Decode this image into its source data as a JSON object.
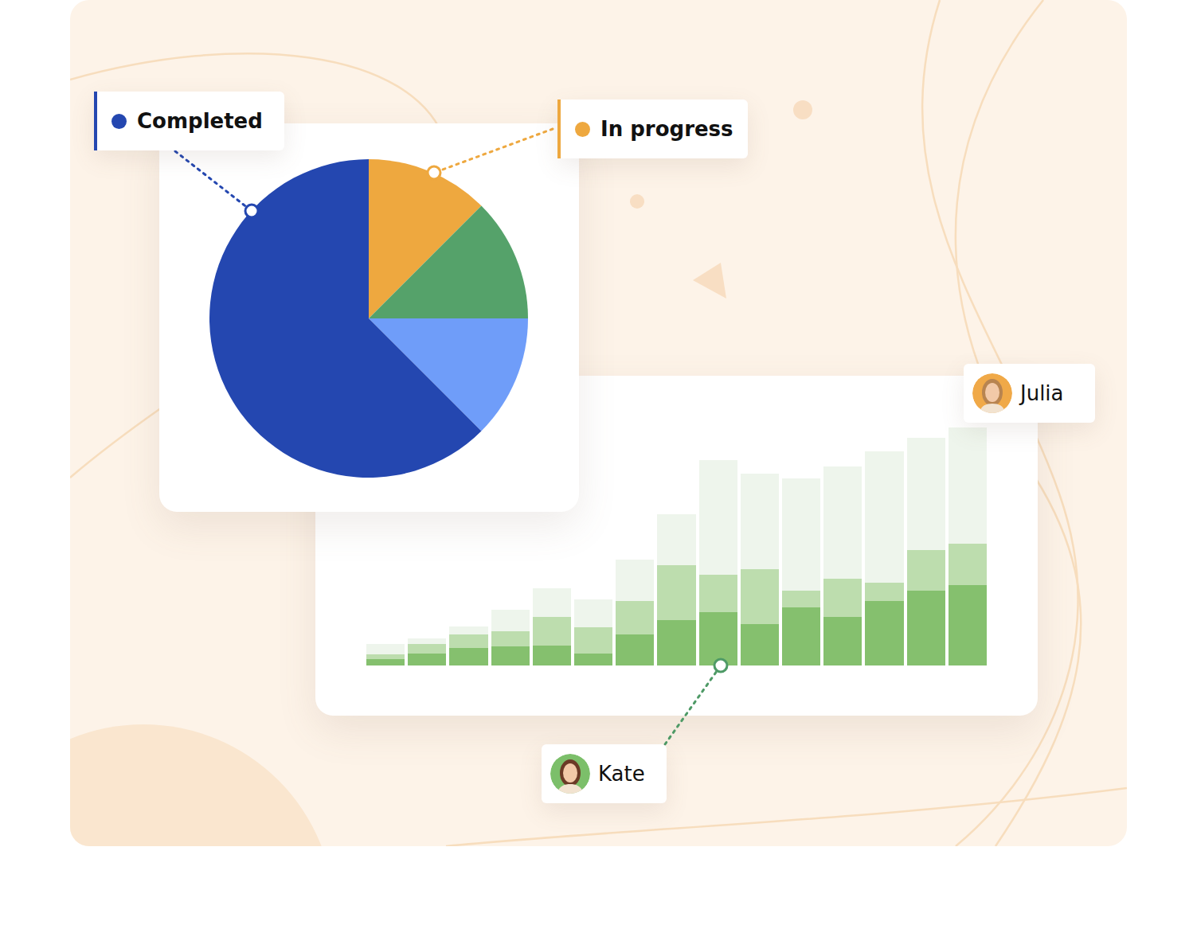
{
  "chart_data": [
    {
      "type": "pie",
      "categories": [
        "In progress",
        null,
        null,
        "Completed"
      ],
      "values": [
        12.5,
        12.5,
        12.5,
        62.5
      ],
      "colors": [
        "#EEA83F",
        "#55A26A",
        "#6F9DF9",
        "#2447B0"
      ],
      "data_labels": false
    },
    {
      "type": "bar",
      "stacked": true,
      "categories": [
        null,
        null,
        null,
        null,
        null,
        null,
        null,
        null,
        null,
        null,
        null,
        null,
        null,
        null,
        null
      ],
      "series": [
        {
          "color": "#85C06E",
          "values": [
            8,
            15,
            22,
            24,
            25,
            15,
            39,
            57,
            67,
            52,
            73,
            61,
            81,
            94,
            101
          ]
        },
        {
          "color": "#BDDDAE",
          "values": [
            6,
            12,
            17,
            19,
            36,
            33,
            42,
            69,
            47,
            69,
            21,
            48,
            23,
            51,
            52
          ]
        },
        {
          "color": "#EEF5EC",
          "values": [
            13,
            7,
            10,
            27,
            36,
            35,
            52,
            64,
            144,
            120,
            141,
            141,
            165,
            141,
            146
          ]
        }
      ],
      "ylim": [
        0,
        300
      ],
      "yticks": [],
      "grid": false,
      "tick_labels": false,
      "annotations": [
        {
          "text": "Julia"
        },
        {
          "text": "Kate"
        }
      ]
    }
  ]
}
